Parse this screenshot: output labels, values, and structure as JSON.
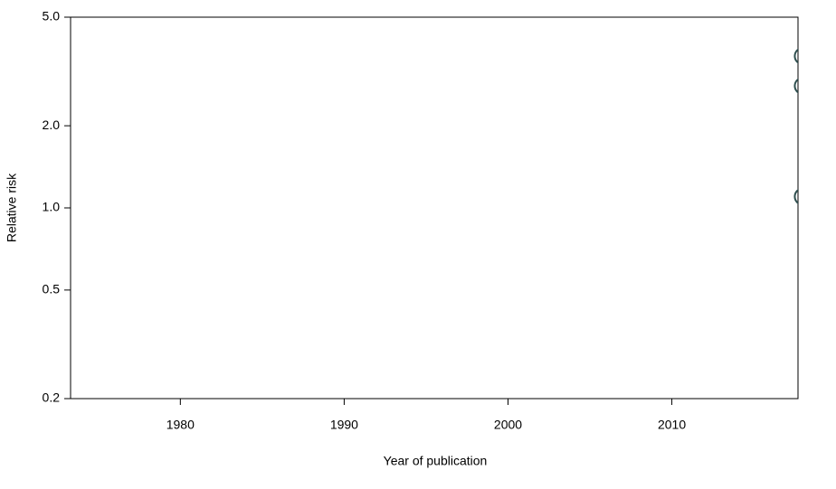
{
  "chart_data": {
    "type": "scatter",
    "x_label": "Year of publication",
    "y_label": "Relative risk",
    "log_y": true,
    "xlim": [
      1973.3,
      2017.7
    ],
    "xticks": [
      1980,
      1990,
      2000,
      2010
    ],
    "ylim": [
      0.2,
      5
    ],
    "yticks": [
      {
        "value": 0.2,
        "label": "0.2"
      },
      {
        "value": 0.5,
        "label": "0.5"
      },
      {
        "value": 1,
        "label": "1.0"
      },
      {
        "value": 2,
        "label": "2.0"
      },
      {
        "value": 5,
        "label": "5.0"
      }
    ],
    "series": [
      {
        "color": "#2f4f4f",
        "x": [
          2018,
          2018,
          2018
        ],
        "values": [
          3.6,
          2.8,
          1.1
        ]
      }
    ]
  }
}
